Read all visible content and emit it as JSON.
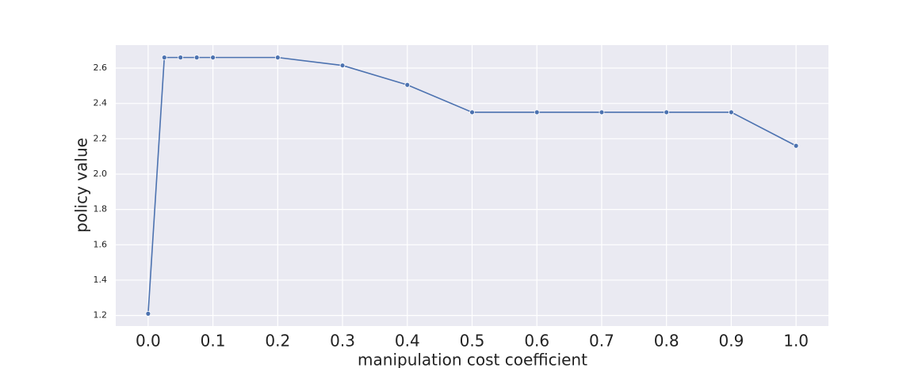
{
  "chart_data": {
    "type": "line",
    "x_label": "manipulation cost coefficient",
    "y_label": "policy value",
    "x": [
      0,
      0.025,
      0.05,
      0.075,
      0.1,
      0.2,
      0.3,
      0.4,
      0.5,
      0.6,
      0.7,
      0.8,
      0.9,
      1.0
    ],
    "series": [
      {
        "color": "#4c72b0",
        "values": [
          1.21,
          2.66,
          2.66,
          2.66,
          2.66,
          2.66,
          2.615,
          2.505,
          2.35,
          2.35,
          2.35,
          2.35,
          2.35,
          2.16
        ]
      }
    ],
    "xlim": [
      -0.05,
      1.05
    ],
    "ylim": [
      1.14,
      2.73
    ],
    "xticks": [
      {
        "value": 0,
        "label": "0.0"
      },
      0.1,
      0.2,
      0.3,
      0.4,
      0.5,
      0.6,
      0.7,
      0.8,
      0.9,
      {
        "value": 1,
        "label": "1.0"
      }
    ],
    "yticks": [
      1.2,
      1.4,
      1.6,
      1.8,
      {
        "value": 2,
        "label": "2.0"
      },
      2.2,
      2.4,
      2.6
    ],
    "grid": true
  }
}
